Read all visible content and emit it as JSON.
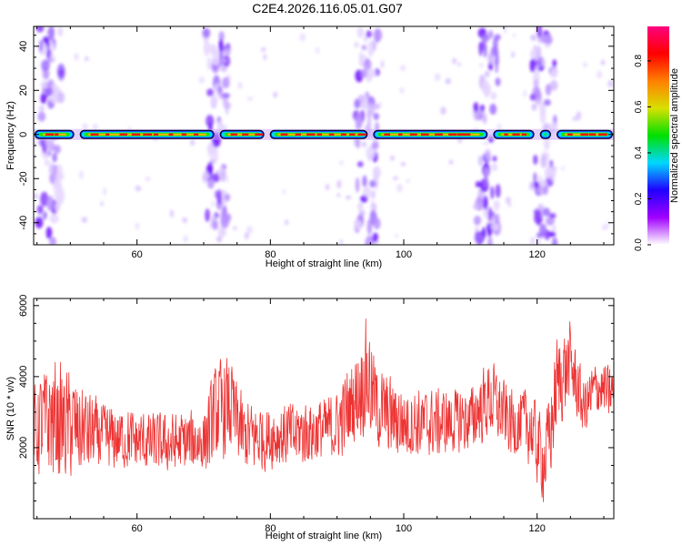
{
  "title": "C2E4.2026.116.05.01.G07",
  "chart_data": [
    {
      "type": "heatmap",
      "name": "spectrogram",
      "xlabel": "Height of straight line (km)",
      "ylabel": "Frequency (Hz)",
      "xlim": [
        44.5,
        131.5
      ],
      "ylim": [
        -50,
        49
      ],
      "xticks": [
        60,
        80,
        100,
        120
      ],
      "yticks": [
        -40,
        -20,
        0,
        20,
        40
      ],
      "ridge_frequency": 0,
      "ridge_gaps_km": [
        51,
        72,
        79.5,
        95,
        113,
        120,
        122.5
      ],
      "noise_columns_km": [
        47,
        72,
        94.5,
        112.5,
        121
      ],
      "colorbar": {
        "label": "Normalized spectral amplitude",
        "range": [
          0,
          0.95
        ],
        "ticks": [
          0.0,
          0.2,
          0.4,
          0.6,
          0.8
        ],
        "tick_labels": [
          "0.0",
          "0.2",
          "0.4",
          "0.6",
          "0.8"
        ],
        "colors": [
          "#ffffff",
          "#a000ff",
          "#2000ff",
          "#00d8ff",
          "#00e000",
          "#d8e000",
          "#ff8000",
          "#ff0000",
          "#ff0080"
        ]
      }
    },
    {
      "type": "line",
      "name": "snr",
      "xlabel": "Height of straight line (km)",
      "ylabel": "SNR (10 * v/v)",
      "xlim": [
        44.5,
        131.5
      ],
      "ylim": [
        0,
        6200
      ],
      "xticks": [
        60,
        80,
        100,
        120
      ],
      "yticks": [
        2000,
        4000,
        6000
      ],
      "color": "#ee3333",
      "envelope": {
        "x": [
          44.5,
          47,
          50,
          55,
          60,
          65,
          70,
          72,
          74,
          76,
          80,
          85,
          90,
          93,
          94.5,
          96,
          100,
          105,
          110,
          113,
          116,
          119,
          121,
          122,
          123,
          125,
          127,
          129,
          131.5
        ],
        "mean": [
          2500,
          2800,
          2600,
          2300,
          2200,
          2100,
          2200,
          3000,
          3200,
          2300,
          2300,
          2400,
          2600,
          3500,
          4100,
          3100,
          2700,
          2700,
          2800,
          3400,
          2700,
          2600,
          1600,
          2400,
          3800,
          4400,
          3100,
          3700,
          3500
        ],
        "amp": [
          1300,
          1900,
          1600,
          1000,
          900,
          900,
          1000,
          1600,
          1500,
          1100,
          1000,
          1000,
          1000,
          1500,
          1700,
          1300,
          1100,
          1000,
          1000,
          1200,
          1000,
          1200,
          1300,
          1400,
          1500,
          1200,
          900,
          900,
          800
        ]
      },
      "samples": 1400
    }
  ]
}
